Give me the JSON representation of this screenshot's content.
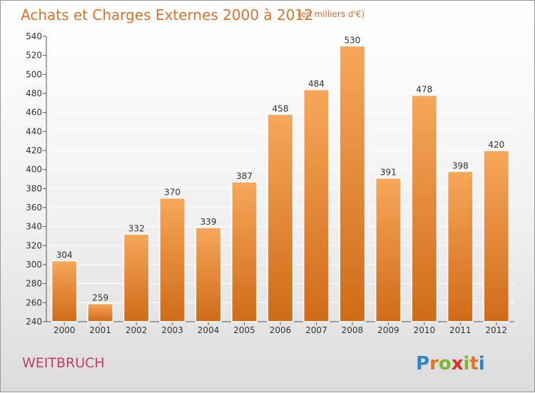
{
  "chart_data": {
    "type": "bar",
    "title": "Achats et Charges Externes 2000 à 2012",
    "subtitle": "(en milliers d'€)",
    "categories": [
      "2000",
      "2001",
      "2002",
      "2003",
      "2004",
      "2005",
      "2006",
      "2007",
      "2008",
      "2009",
      "2010",
      "2011",
      "2012"
    ],
    "values": [
      304,
      259,
      332,
      370,
      339,
      387,
      458,
      484,
      530,
      391,
      478,
      398,
      420
    ],
    "ylim": [
      240,
      540
    ],
    "yticks": [
      240,
      260,
      280,
      300,
      320,
      340,
      360,
      380,
      400,
      420,
      440,
      460,
      480,
      500,
      520,
      540
    ],
    "grid": true,
    "bar_color_top": "#f7a75a",
    "bar_color_bottom": "#cf6b18"
  },
  "commune": "WEITBRUCH",
  "brand": {
    "letters": [
      "P",
      "r",
      "o",
      "x",
      "i",
      "t",
      "i"
    ],
    "colors": [
      "#2a86c9",
      "#e8741f",
      "#7cb82f",
      "#d9331e",
      "#7cb82f",
      "#e8741f",
      "#2a86c9"
    ]
  }
}
